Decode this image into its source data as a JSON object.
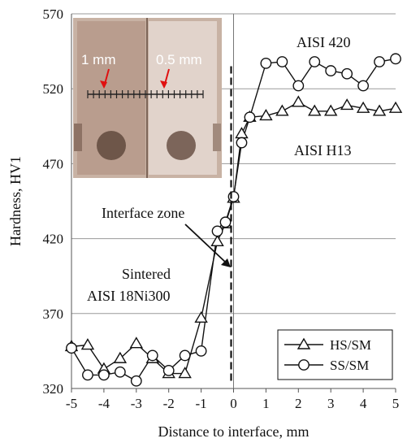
{
  "chart_data": {
    "type": "line",
    "xlabel": "Distance to interface, mm",
    "ylabel": "Hardness, HV1",
    "xlim": [
      -5,
      5
    ],
    "ylim": [
      320,
      570
    ],
    "xticks": [
      -5,
      -4,
      -3,
      -2,
      -1,
      0,
      1,
      2,
      3,
      4,
      5
    ],
    "yticks": [
      320,
      370,
      420,
      470,
      520,
      570
    ],
    "grid": "horizontal",
    "legend_position": "bottom-right",
    "series": [
      {
        "name": "HS/SM",
        "marker": "triangle",
        "x": [
          -5,
          -4.5,
          -4,
          -3.5,
          -3,
          -2.5,
          -2,
          -1.5,
          -1,
          -0.5,
          -0.25,
          0,
          0.25,
          0.5,
          1,
          1.5,
          2,
          2.5,
          3,
          3.5,
          4,
          4.5,
          5
        ],
        "y": [
          348,
          349,
          333,
          340,
          350,
          340,
          330,
          330,
          367,
          418,
          430,
          447,
          490,
          501,
          502,
          505,
          511,
          505,
          505,
          509,
          507,
          505,
          507
        ]
      },
      {
        "name": "SS/SM",
        "marker": "circle",
        "x": [
          -5,
          -4.5,
          -4,
          -3.5,
          -3,
          -2.5,
          -2,
          -1.5,
          -1,
          -0.5,
          -0.25,
          0,
          0.25,
          0.5,
          1,
          1.5,
          2,
          2.5,
          3,
          3.5,
          4,
          4.5,
          5
        ],
        "y": [
          347,
          329,
          329,
          331,
          325,
          342,
          332,
          342,
          345,
          425,
          431,
          448,
          484,
          501,
          537,
          538,
          522,
          538,
          532,
          530,
          522,
          538,
          540
        ]
      }
    ],
    "annotations": {
      "aisi420": "AISI 420",
      "aisih13": "AISI H13",
      "interface_zone": "Interface zone",
      "sintered_line1": "Sintered",
      "sintered_line2": "AISI 18Ni300"
    },
    "inset_photo": {
      "scale_label_1": "1 mm",
      "scale_label_2": "0.5 mm"
    }
  }
}
